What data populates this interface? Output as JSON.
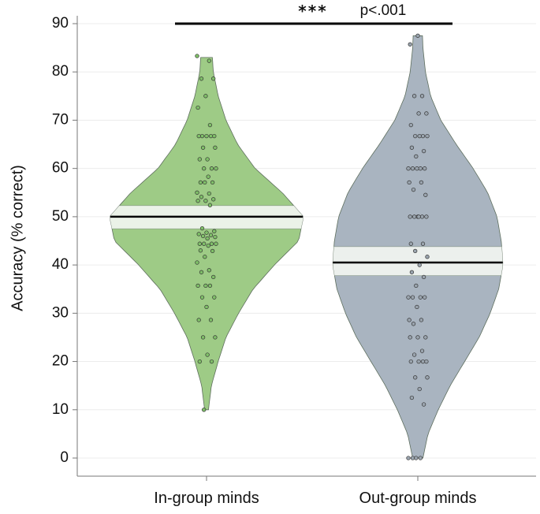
{
  "chart_data": {
    "type": "violin",
    "title": "",
    "xlabel": "",
    "ylabel": "Accuracy (% correct)",
    "ylim": [
      0,
      90
    ],
    "yticks": [
      0,
      10,
      20,
      30,
      40,
      50,
      60,
      70,
      80,
      90
    ],
    "grid": true,
    "categories": [
      "In-group minds",
      "Out-group minds"
    ],
    "series": [
      {
        "category": "In-group minds",
        "color": "#9ecb86",
        "mean": 50,
        "ci": [
          47.5,
          52.3
        ],
        "range": [
          10,
          83
        ],
        "density": [
          [
            10,
            0.02
          ],
          [
            15,
            0.05
          ],
          [
            20,
            0.12
          ],
          [
            25,
            0.2
          ],
          [
            30,
            0.33
          ],
          [
            35,
            0.48
          ],
          [
            40,
            0.7
          ],
          [
            45,
            0.95
          ],
          [
            50,
            1.0
          ],
          [
            55,
            0.78
          ],
          [
            60,
            0.5
          ],
          [
            65,
            0.32
          ],
          [
            70,
            0.2
          ],
          [
            75,
            0.12
          ],
          [
            80,
            0.07
          ],
          [
            83,
            0.06
          ]
        ],
        "points": [
          83.3,
          82.3,
          78.6,
          78.6,
          75,
          72.6,
          69,
          66.7,
          66.7,
          66.7,
          66.7,
          66.7,
          64.3,
          64.3,
          61.9,
          61.9,
          60,
          60,
          60,
          58.3,
          57.1,
          57.1,
          57.1,
          55,
          54.8,
          54.1,
          53.6,
          53.3,
          53.3,
          52.4,
          47.6,
          47,
          46.7,
          46.4,
          46.2,
          46,
          45.8,
          45.5,
          44.4,
          44.4,
          44.4,
          44.4,
          44,
          43,
          42.9,
          41.7,
          40.5,
          38.9,
          38.5,
          37.5,
          35.7,
          35.7,
          35.7,
          33.3,
          33.3,
          31.3,
          28.6,
          28.6,
          25,
          25,
          21.4,
          20,
          20,
          10
        ]
      },
      {
        "category": "Out-group minds",
        "color": "#a9b4c0",
        "mean": 40.5,
        "ci": [
          37.8,
          43.8
        ],
        "range": [
          0,
          87.5
        ],
        "density": [
          [
            0,
            0.06
          ],
          [
            5,
            0.12
          ],
          [
            10,
            0.24
          ],
          [
            15,
            0.38
          ],
          [
            20,
            0.55
          ],
          [
            25,
            0.72
          ],
          [
            30,
            0.85
          ],
          [
            35,
            0.95
          ],
          [
            40,
            1.0
          ],
          [
            45,
            0.98
          ],
          [
            50,
            0.93
          ],
          [
            55,
            0.82
          ],
          [
            60,
            0.65
          ],
          [
            65,
            0.45
          ],
          [
            70,
            0.27
          ],
          [
            75,
            0.15
          ],
          [
            80,
            0.09
          ],
          [
            85,
            0.06
          ],
          [
            87.5,
            0.055
          ]
        ],
        "points": [
          87.5,
          85.7,
          75,
          75,
          71.4,
          71.4,
          69,
          66.7,
          66.7,
          66.7,
          66.7,
          64.3,
          63.6,
          62.5,
          60,
          60,
          60,
          60,
          60,
          57.1,
          57.1,
          55.6,
          54.5,
          50,
          50,
          50,
          50,
          50,
          50,
          44.4,
          44.4,
          42.9,
          41.7,
          40,
          38.5,
          37.5,
          35.7,
          33.3,
          33.3,
          33.3,
          33.3,
          31.3,
          28.6,
          28.6,
          27.8,
          25,
          25,
          25,
          22.2,
          21.4,
          20,
          20,
          20,
          20,
          16.7,
          16.7,
          14.3,
          12.5,
          11.1,
          0,
          0,
          0,
          0
        ]
      }
    ],
    "annotation": {
      "stars": "***",
      "pvalue": "p<.001"
    }
  }
}
